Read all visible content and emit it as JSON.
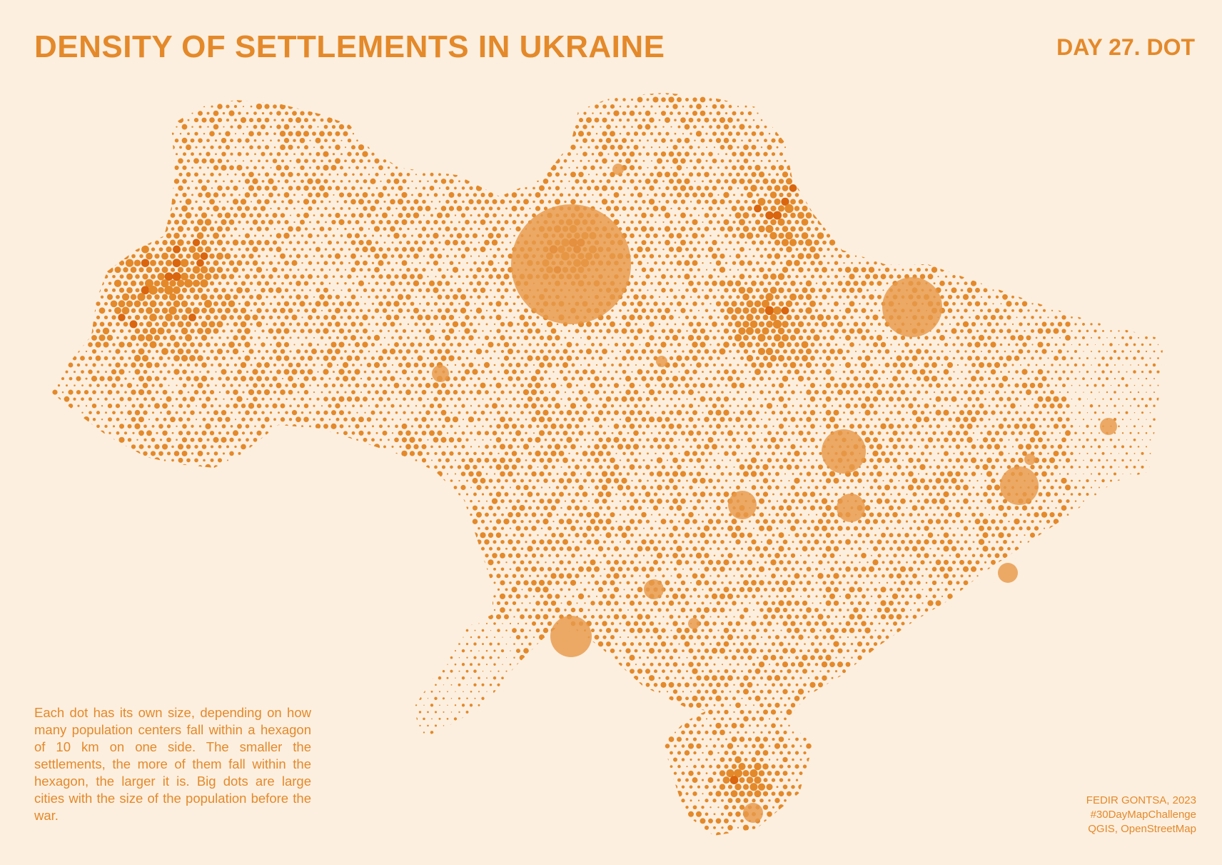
{
  "header": {
    "title": "DENSITY OF SETTLEMENTS IN UKRAINE",
    "day_label": "DAY 27. DOT"
  },
  "description": "Each dot has its own size, depending on how many population centers fall within a hexagon of 10 km on one side. The smaller the settlements, the more of them fall within the hexagon, the larger it is. Big dots are large cities with the size of the population before the war.",
  "credits": {
    "author": "FEDIR GONTSA, 2023",
    "hashtag": "#30DayMapChallenge",
    "tools": "QGIS, OpenStreetMap"
  },
  "map": {
    "country": "Ukraine",
    "dot_color": "#e4892a",
    "dense_dot_color": "#d9650e",
    "city_color": "#e89a4a",
    "background_color": "#fcefdf"
  }
}
